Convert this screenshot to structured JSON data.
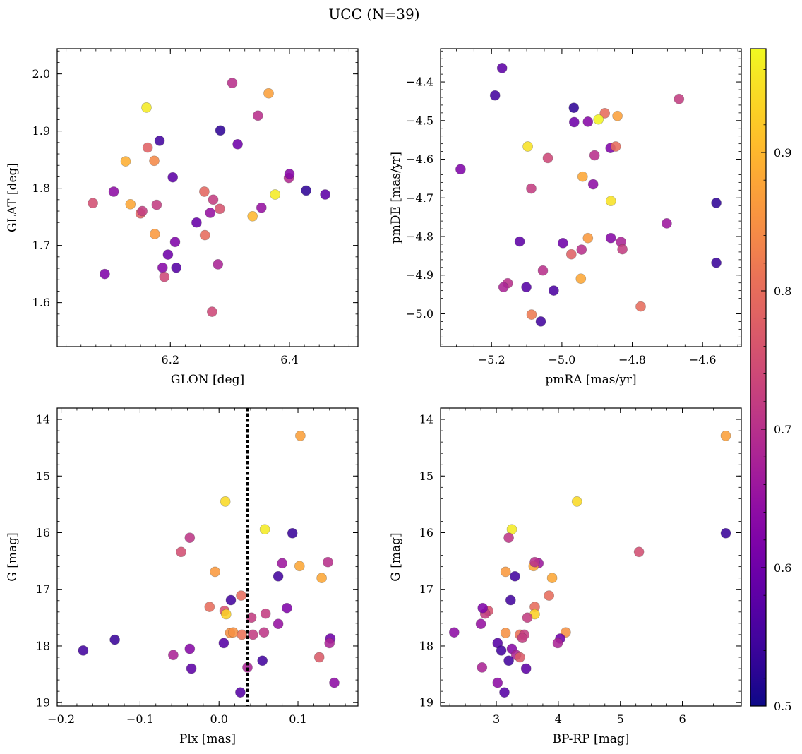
{
  "title": "UCC (N=39)",
  "colors": {
    "colormap": "plasma",
    "vline": "#000000",
    "stops": [
      "#0d0887",
      "#2a0593",
      "#41049d",
      "#5601a4",
      "#6a00a8",
      "#7e03a8",
      "#8f0da4",
      "#a11b9b",
      "#b12a90",
      "#bf3984",
      "#cc4778",
      "#d6556d",
      "#e16462",
      "#e97158",
      "#f2844b",
      "#f89540",
      "#fca636",
      "#feba2c",
      "#fcce25",
      "#f7e225",
      "#f0f921"
    ]
  },
  "colorbar": {
    "min": 0.5,
    "max": 0.975,
    "ticks": [
      0.5,
      0.6,
      0.7,
      0.8,
      0.9
    ],
    "ticklabels": [
      "0.5",
      "0.6",
      "0.7",
      "0.8",
      "0.9"
    ]
  },
  "chart_data": [
    {
      "type": "scatter",
      "id": "glon_glat",
      "title": "",
      "xlabel": "GLON [deg]",
      "ylabel": "GLAT [deg]",
      "xlim": [
        6.01,
        6.515
      ],
      "ylim": [
        1.523,
        2.044
      ],
      "invert_y": false,
      "xticks": [
        6.2,
        6.4
      ],
      "xticklabels": [
        "6.2",
        "6.4"
      ],
      "yticks": [
        1.6,
        1.7,
        1.8,
        1.9,
        2.0
      ],
      "yticklabels": [
        "1.6",
        "1.7",
        "1.8",
        "1.9",
        "2.0"
      ],
      "points": [
        [
          6.07,
          1.774,
          0.75
        ],
        [
          6.09,
          1.65,
          0.62
        ],
        [
          6.105,
          1.794,
          0.64
        ],
        [
          6.125,
          1.847,
          0.89
        ],
        [
          6.133,
          1.772,
          0.88
        ],
        [
          6.15,
          1.756,
          0.78
        ],
        [
          6.153,
          1.76,
          0.72
        ],
        [
          6.16,
          1.941,
          0.96
        ],
        [
          6.162,
          1.871,
          0.78
        ],
        [
          6.173,
          1.848,
          0.84
        ],
        [
          6.174,
          1.72,
          0.86
        ],
        [
          6.177,
          1.771,
          0.72
        ],
        [
          6.182,
          1.883,
          0.55
        ],
        [
          6.187,
          1.661,
          0.63
        ],
        [
          6.19,
          1.645,
          0.74
        ],
        [
          6.196,
          1.684,
          0.6
        ],
        [
          6.204,
          1.819,
          0.58
        ],
        [
          6.208,
          1.706,
          0.62
        ],
        [
          6.21,
          1.661,
          0.57
        ],
        [
          6.244,
          1.74,
          0.59
        ],
        [
          6.257,
          1.794,
          0.79
        ],
        [
          6.258,
          1.718,
          0.8
        ],
        [
          6.267,
          1.757,
          0.65
        ],
        [
          6.27,
          1.584,
          0.74
        ],
        [
          6.272,
          1.78,
          0.72
        ],
        [
          6.28,
          1.667,
          0.68
        ],
        [
          6.283,
          1.764,
          0.76
        ],
        [
          6.284,
          1.901,
          0.53
        ],
        [
          6.304,
          1.984,
          0.7
        ],
        [
          6.313,
          1.877,
          0.6
        ],
        [
          6.338,
          1.751,
          0.9
        ],
        [
          6.347,
          1.927,
          0.7
        ],
        [
          6.353,
          1.766,
          0.65
        ],
        [
          6.365,
          1.966,
          0.87
        ],
        [
          6.376,
          1.789,
          0.96
        ],
        [
          6.399,
          1.818,
          0.69
        ],
        [
          6.4,
          1.825,
          0.63
        ],
        [
          6.428,
          1.796,
          0.53
        ],
        [
          6.46,
          1.789,
          0.58
        ]
      ]
    },
    {
      "type": "scatter",
      "id": "pmra_pmde",
      "title": "",
      "xlabel": "pmRA [mas/yr]",
      "ylabel": "pmDE [mas/yr]",
      "xlim": [
        -5.345,
        -4.49
      ],
      "ylim": [
        -5.085,
        -4.314
      ],
      "invert_y": false,
      "xticks": [
        -5.2,
        -5.0,
        -4.8,
        -4.6
      ],
      "xticklabels": [
        "−5.2",
        "−5.0",
        "−4.8",
        "−4.6"
      ],
      "yticks": [
        -5.0,
        -4.9,
        -4.8,
        -4.7,
        -4.6,
        -4.5,
        -4.4
      ],
      "yticklabels": [
        "−5.0",
        "−4.9",
        "−4.8",
        "−4.7",
        "−4.6",
        "−4.5",
        "−4.4"
      ],
      "points": [
        [
          -5.17,
          -4.364,
          0.58
        ],
        [
          -5.19,
          -4.435,
          0.55
        ],
        [
          -5.288,
          -4.626,
          0.62
        ],
        [
          -4.966,
          -4.467,
          0.53
        ],
        [
          -4.965,
          -4.504,
          0.6
        ],
        [
          -4.926,
          -4.503,
          0.63
        ],
        [
          -4.878,
          -4.481,
          0.8
        ],
        [
          -4.896,
          -4.497,
          0.97
        ],
        [
          -4.842,
          -4.488,
          0.87
        ],
        [
          -4.667,
          -4.444,
          0.72
        ],
        [
          -5.097,
          -4.567,
          0.95
        ],
        [
          -5.04,
          -4.597,
          0.74
        ],
        [
          -4.907,
          -4.59,
          0.7
        ],
        [
          -4.862,
          -4.571,
          0.62
        ],
        [
          -4.847,
          -4.567,
          0.8
        ],
        [
          -4.941,
          -4.645,
          0.88
        ],
        [
          -5.087,
          -4.676,
          0.72
        ],
        [
          -4.911,
          -4.665,
          0.64
        ],
        [
          -4.861,
          -4.708,
          0.95
        ],
        [
          -4.561,
          -4.713,
          0.53
        ],
        [
          -4.702,
          -4.766,
          0.66
        ],
        [
          -5.12,
          -4.813,
          0.58
        ],
        [
          -4.997,
          -4.817,
          0.6
        ],
        [
          -4.926,
          -4.804,
          0.86
        ],
        [
          -4.861,
          -4.804,
          0.63
        ],
        [
          -4.832,
          -4.814,
          0.68
        ],
        [
          -4.828,
          -4.833,
          0.72
        ],
        [
          -4.944,
          -4.834,
          0.7
        ],
        [
          -4.973,
          -4.846,
          0.78
        ],
        [
          -5.054,
          -4.888,
          0.7
        ],
        [
          -5.154,
          -4.921,
          0.7
        ],
        [
          -5.166,
          -4.931,
          0.68
        ],
        [
          -5.101,
          -4.931,
          0.57
        ],
        [
          -5.023,
          -4.94,
          0.56
        ],
        [
          -4.946,
          -4.909,
          0.88
        ],
        [
          -4.561,
          -4.868,
          0.54
        ],
        [
          -4.776,
          -4.981,
          0.8
        ],
        [
          -5.086,
          -5.002,
          0.82
        ],
        [
          -5.06,
          -5.02,
          0.55
        ]
      ]
    },
    {
      "type": "scatter",
      "id": "plx_g",
      "title": "",
      "xlabel": "Plx [mas]",
      "ylabel": "G [mag]",
      "xlim": [
        -0.205,
        0.176
      ],
      "ylim": [
        13.8,
        19.06
      ],
      "invert_y": true,
      "vline": 0.036,
      "xticks": [
        -0.2,
        -0.1,
        0.0,
        0.1
      ],
      "xticklabels": [
        "−0.2",
        "−0.1",
        "0.0",
        "0.1"
      ],
      "yticks": [
        14,
        15,
        16,
        17,
        18,
        19
      ],
      "yticklabels": [
        "14",
        "15",
        "16",
        "17",
        "18",
        "19"
      ],
      "points": [
        [
          0.103,
          14.29,
          0.87
        ],
        [
          0.008,
          15.45,
          0.94
        ],
        [
          0.058,
          15.94,
          0.96
        ],
        [
          0.093,
          16.01,
          0.54
        ],
        [
          -0.037,
          16.09,
          0.71
        ],
        [
          -0.048,
          16.34,
          0.75
        ],
        [
          0.08,
          16.54,
          0.66
        ],
        [
          0.102,
          16.59,
          0.88
        ],
        [
          0.138,
          16.52,
          0.7
        ],
        [
          -0.005,
          16.69,
          0.86
        ],
        [
          0.075,
          16.77,
          0.55
        ],
        [
          0.13,
          16.8,
          0.88
        ],
        [
          0.028,
          17.11,
          0.8
        ],
        [
          0.015,
          17.19,
          0.55
        ],
        [
          -0.012,
          17.31,
          0.8
        ],
        [
          0.007,
          17.38,
          0.76
        ],
        [
          0.009,
          17.44,
          0.93
        ],
        [
          0.059,
          17.43,
          0.72
        ],
        [
          0.086,
          17.33,
          0.62
        ],
        [
          0.041,
          17.5,
          0.72
        ],
        [
          0.075,
          17.61,
          0.65
        ],
        [
          0.014,
          17.77,
          0.85
        ],
        [
          0.018,
          17.76,
          0.85
        ],
        [
          0.029,
          17.8,
          0.81
        ],
        [
          0.057,
          17.76,
          0.71
        ],
        [
          0.043,
          17.8,
          0.72
        ],
        [
          0.006,
          17.95,
          0.57
        ],
        [
          0.141,
          17.87,
          0.6
        ],
        [
          0.14,
          17.95,
          0.68
        ],
        [
          -0.132,
          17.89,
          0.54
        ],
        [
          -0.172,
          18.08,
          0.55
        ],
        [
          -0.037,
          18.05,
          0.63
        ],
        [
          -0.058,
          18.16,
          0.68
        ],
        [
          0.127,
          18.2,
          0.77
        ],
        [
          0.055,
          18.26,
          0.55
        ],
        [
          -0.035,
          18.4,
          0.58
        ],
        [
          0.036,
          18.38,
          0.68
        ],
        [
          0.146,
          18.65,
          0.64
        ],
        [
          0.027,
          18.82,
          0.57
        ]
      ]
    },
    {
      "type": "scatter",
      "id": "bprp_g",
      "title": "",
      "xlabel": "BP-RP [mag]",
      "ylabel": "G [mag]",
      "xlim": [
        2.1,
        6.95
      ],
      "ylim": [
        13.8,
        19.06
      ],
      "invert_y": true,
      "xticks": [
        3,
        4,
        5,
        6
      ],
      "xticklabels": [
        "3",
        "4",
        "5",
        "6"
      ],
      "yticks": [
        14,
        15,
        16,
        17,
        18,
        19
      ],
      "yticklabels": [
        "14",
        "15",
        "16",
        "17",
        "18",
        "19"
      ],
      "points": [
        [
          6.7,
          14.29,
          0.87
        ],
        [
          4.3,
          15.45,
          0.94
        ],
        [
          3.25,
          15.94,
          0.96
        ],
        [
          6.7,
          16.01,
          0.54
        ],
        [
          3.2,
          16.09,
          0.71
        ],
        [
          5.3,
          16.34,
          0.75
        ],
        [
          3.68,
          16.54,
          0.66
        ],
        [
          3.6,
          16.59,
          0.88
        ],
        [
          3.62,
          16.52,
          0.7
        ],
        [
          3.15,
          16.69,
          0.86
        ],
        [
          3.3,
          16.77,
          0.55
        ],
        [
          3.9,
          16.8,
          0.88
        ],
        [
          3.85,
          17.11,
          0.8
        ],
        [
          3.23,
          17.19,
          0.55
        ],
        [
          3.62,
          17.31,
          0.8
        ],
        [
          2.87,
          17.38,
          0.76
        ],
        [
          3.62,
          17.44,
          0.93
        ],
        [
          2.82,
          17.43,
          0.72
        ],
        [
          2.78,
          17.33,
          0.62
        ],
        [
          3.5,
          17.5,
          0.72
        ],
        [
          2.75,
          17.61,
          0.65
        ],
        [
          3.15,
          17.77,
          0.85
        ],
        [
          4.12,
          17.76,
          0.85
        ],
        [
          3.38,
          17.8,
          0.81
        ],
        [
          3.45,
          17.8,
          0.72
        ],
        [
          3.42,
          17.86,
          0.72
        ],
        [
          3.02,
          17.95,
          0.57
        ],
        [
          4.03,
          17.87,
          0.6
        ],
        [
          3.99,
          17.95,
          0.68
        ],
        [
          2.32,
          17.76,
          0.64
        ],
        [
          3.08,
          18.08,
          0.55
        ],
        [
          3.25,
          18.05,
          0.63
        ],
        [
          3.32,
          18.16,
          0.68
        ],
        [
          3.38,
          18.2,
          0.77
        ],
        [
          3.2,
          18.26,
          0.55
        ],
        [
          3.48,
          18.4,
          0.58
        ],
        [
          2.77,
          18.38,
          0.68
        ],
        [
          3.02,
          18.65,
          0.64
        ],
        [
          3.13,
          18.82,
          0.57
        ]
      ]
    }
  ]
}
